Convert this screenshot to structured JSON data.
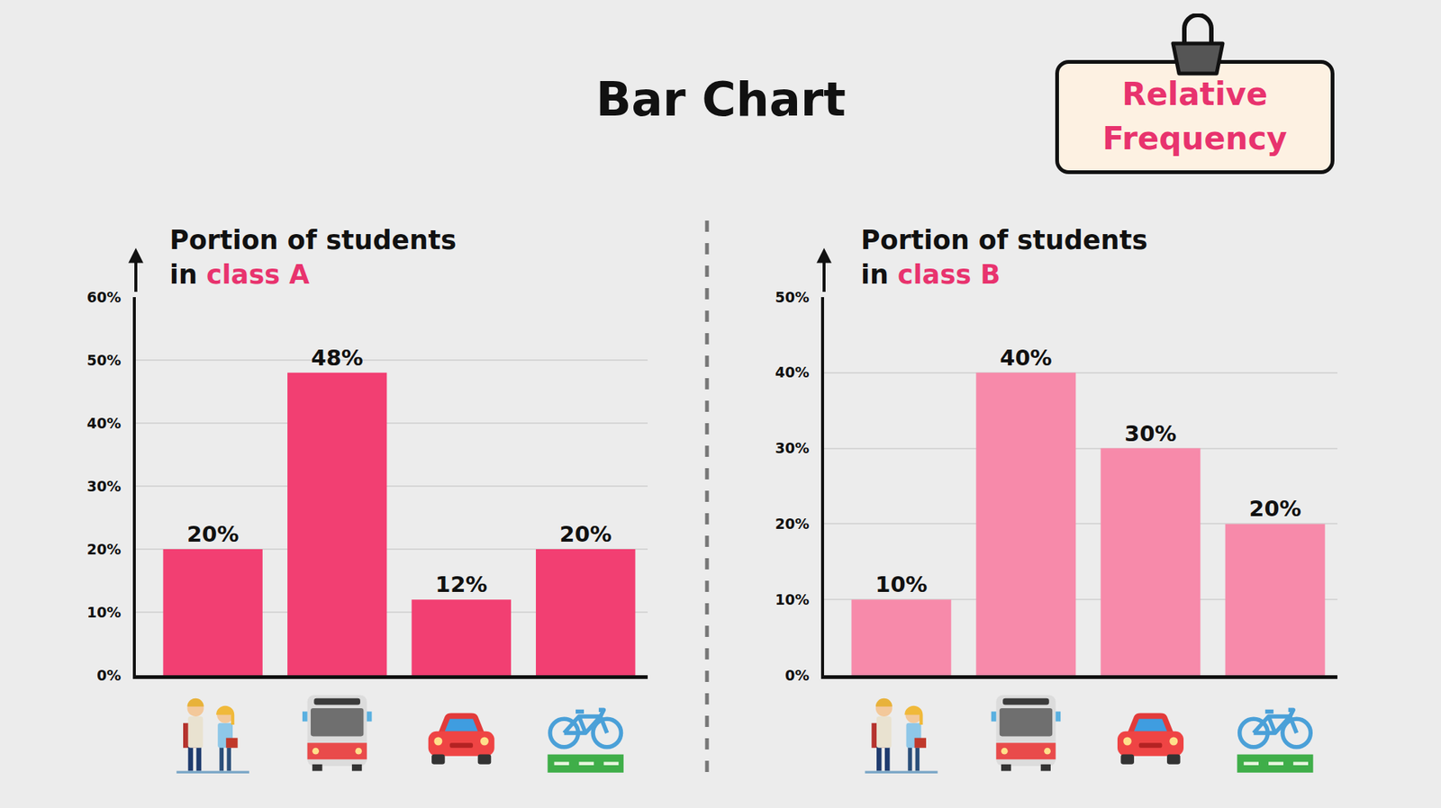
{
  "header": {
    "title": "Bar Chart",
    "badge": "Relative Frequency"
  },
  "chart_data": [
    {
      "type": "bar",
      "title": "Portion of students in class A",
      "categories": [
        null,
        null,
        null,
        null
      ],
      "values": [
        20,
        48,
        12,
        20
      ],
      "value_labels": [
        "20%",
        "48%",
        "12%",
        "20%"
      ],
      "color": "#f23f72",
      "ylim": [
        0,
        60
      ],
      "yticks": [
        {
          "value": 0,
          "label": "0%"
        },
        {
          "value": 10,
          "label": "10%"
        },
        {
          "value": 20,
          "label": "20%"
        },
        {
          "value": 30,
          "label": "30%"
        },
        {
          "value": 40,
          "label": "40%"
        },
        {
          "value": 50,
          "label": "50%"
        },
        {
          "value": 60,
          "label": "60%"
        }
      ],
      "grid": true,
      "data_labels": true,
      "tick_labels": "y"
    },
    {
      "type": "bar",
      "title": "Portion of students in class B",
      "categories": [
        null,
        null,
        null,
        null
      ],
      "values": [
        10,
        40,
        30,
        20
      ],
      "value_labels": [
        "10%",
        "40%",
        "30%",
        "20%"
      ],
      "color": "#f78aaa",
      "ylim": [
        0,
        50
      ],
      "yticks": [
        {
          "value": 0,
          "label": "0%"
        },
        {
          "value": 10,
          "label": "10%"
        },
        {
          "value": 20,
          "label": "20%"
        },
        {
          "value": 30,
          "label": "30%"
        },
        {
          "value": 40,
          "label": "40%"
        },
        {
          "value": 50,
          "label": "50%"
        }
      ],
      "grid": true,
      "data_labels": true,
      "tick_labels": "y"
    }
  ]
}
